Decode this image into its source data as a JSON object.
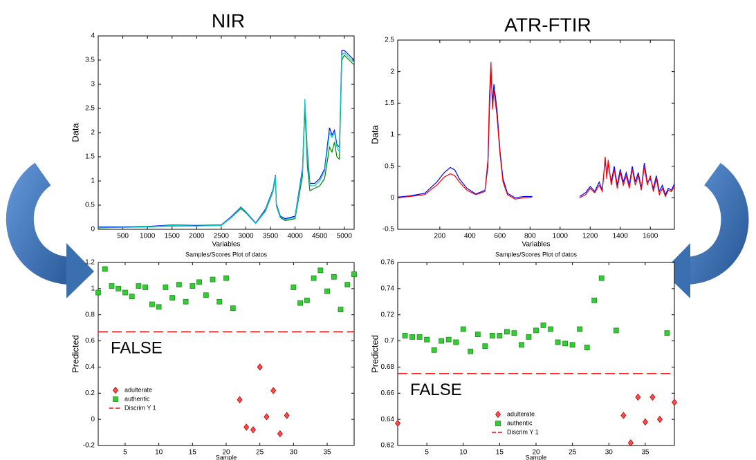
{
  "chart_data": [
    {
      "type": "line",
      "title": "NIR",
      "xlabel": "Variables",
      "ylabel": "Data",
      "x": [
        0,
        500,
        1000,
        1500,
        2000,
        2500,
        2700,
        2900,
        3000,
        3200,
        3400,
        3550,
        3600,
        3620,
        3700,
        3800,
        4000,
        4150,
        4200,
        4250,
        4300,
        4400,
        4500,
        4600,
        4700,
        4750,
        4800,
        4850,
        4900,
        4950,
        5000,
        5100,
        5200
      ],
      "series": [
        {
          "color": "#0000ff",
          "values": [
            0.05,
            0.05,
            0.06,
            0.09,
            0.08,
            0.09,
            0.26,
            0.46,
            0.36,
            0.13,
            0.42,
            0.82,
            1.12,
            0.52,
            0.27,
            0.22,
            0.27,
            1.25,
            2.6,
            1.6,
            0.95,
            0.95,
            1.05,
            1.25,
            2.1,
            1.95,
            2.05,
            1.75,
            1.7,
            3.7,
            3.7,
            3.6,
            3.5
          ]
        },
        {
          "color": "#008000",
          "values": [
            0.03,
            0.04,
            0.05,
            0.07,
            0.07,
            0.08,
            0.24,
            0.43,
            0.34,
            0.12,
            0.38,
            0.78,
            1.05,
            0.48,
            0.24,
            0.18,
            0.22,
            1.1,
            2.5,
            1.3,
            0.8,
            0.85,
            0.9,
            1.05,
            1.7,
            1.6,
            1.8,
            1.5,
            1.45,
            3.5,
            3.6,
            3.5,
            3.4
          ]
        },
        {
          "color": "#00cccc",
          "values": [
            0.04,
            0.04,
            0.05,
            0.08,
            0.07,
            0.08,
            0.25,
            0.45,
            0.35,
            0.12,
            0.4,
            0.8,
            1.1,
            0.5,
            0.25,
            0.2,
            0.25,
            1.2,
            2.7,
            1.5,
            0.9,
            0.9,
            1,
            1.2,
            2,
            1.9,
            2,
            1.7,
            1.6,
            3.6,
            3.65,
            3.55,
            3.45
          ]
        }
      ],
      "xlim": [
        0,
        5200
      ],
      "xticks": [
        500,
        1000,
        1500,
        2000,
        2500,
        3000,
        3500,
        4000,
        4500,
        5000
      ],
      "ylim": [
        0,
        4
      ],
      "yticks": [
        0,
        0.5,
        1,
        1.5,
        2,
        2.5,
        3,
        3.5,
        4
      ]
    },
    {
      "type": "line",
      "title": "ATR-FTIR",
      "xlabel": "Variables",
      "ylabel": "Data",
      "x": [
        -80,
        0,
        100,
        180,
        230,
        270,
        300,
        330,
        380,
        440,
        500,
        520,
        530,
        540,
        550,
        560,
        580,
        600,
        620,
        650,
        700,
        760,
        815,
        1000,
        1130,
        1170,
        1200,
        1230,
        1260,
        1280,
        1300,
        1310,
        1320,
        1340,
        1360,
        1380,
        1400,
        1420,
        1440,
        1460,
        1480,
        1500,
        1520,
        1540,
        1560,
        1580,
        1600,
        1620,
        1640,
        1660,
        1680,
        1700,
        1720,
        1740,
        1760
      ],
      "series": [
        {
          "color": "#0000ff",
          "values": [
            0.01,
            0.03,
            0.07,
            0.25,
            0.4,
            0.48,
            0.44,
            0.3,
            0.15,
            0.06,
            0.12,
            0.5,
            1.4,
            2.0,
            1.5,
            1.8,
            1.4,
            0.75,
            0.3,
            0.07,
            0,
            0.02,
            0.02,
            null,
            0.02,
            0.08,
            0.18,
            0.1,
            0.25,
            0.12,
            0.6,
            0.35,
            0.55,
            0.25,
            0.5,
            0.2,
            0.45,
            0.25,
            0.4,
            0.2,
            0.5,
            0.25,
            0.4,
            0.15,
            0.55,
            0.25,
            0.3,
            0.15,
            0.35,
            0.1,
            0.2,
            0.05,
            0.15,
            0.12,
            0.22
          ]
        },
        {
          "color": "#ff0000",
          "values": [
            0,
            0.02,
            0.05,
            0.2,
            0.33,
            0.38,
            0.35,
            0.25,
            0.12,
            0.05,
            0.1,
            0.6,
            1.6,
            2.15,
            1.4,
            1.7,
            1.3,
            0.7,
            0.25,
            0.05,
            -0.02,
            0,
            0.01,
            null,
            0,
            0.05,
            0.15,
            0.08,
            0.2,
            0.1,
            0.65,
            0.3,
            0.6,
            0.2,
            0.45,
            0.15,
            0.4,
            0.2,
            0.35,
            0.15,
            0.45,
            0.2,
            0.35,
            0.12,
            0.5,
            0.2,
            0.35,
            0.1,
            0.3,
            0.05,
            0.15,
            0.02,
            0.12,
            0.1,
            0.18
          ]
        }
      ],
      "xlim": [
        -80,
        1760
      ],
      "xticks": [
        200,
        400,
        600,
        800,
        1000,
        1200,
        1400,
        1600
      ],
      "ylim": [
        -0.5,
        2.5
      ],
      "yticks": [
        -0.5,
        0,
        0.5,
        1,
        1.5,
        2,
        2.5
      ]
    },
    {
      "type": "scatter",
      "title": "Samples/Scores Plot of datos",
      "xlabel": "Sample",
      "ylabel": "Predicted",
      "annotation": "FALSE",
      "legend": "lower left",
      "series": [
        {
          "name": "adulterate",
          "color": "#ff4d4d",
          "marker": "diamond",
          "x": [
            22,
            23,
            24,
            25,
            26,
            27,
            28,
            29
          ],
          "values": [
            0.15,
            -0.06,
            -0.08,
            0.4,
            0.02,
            0.22,
            -0.11,
            0.03
          ]
        },
        {
          "name": "authentic",
          "color": "#33cc33",
          "marker": "square",
          "x": [
            1,
            2,
            3,
            4,
            5,
            6,
            7,
            8,
            9,
            10,
            11,
            12,
            13,
            14,
            15,
            16,
            17,
            18,
            19,
            20,
            21,
            30,
            31,
            32,
            33,
            34,
            35,
            36,
            37,
            38,
            39
          ],
          "values": [
            0.97,
            1.15,
            1.02,
            1.0,
            0.97,
            0.94,
            1.02,
            1.01,
            0.88,
            0.86,
            1.01,
            0.93,
            1.03,
            0.9,
            1.02,
            1.05,
            0.95,
            1.07,
            0.9,
            1.08,
            0.85,
            1.01,
            0.89,
            0.91,
            1.08,
            1.14,
            0.98,
            1.09,
            0.84,
            1.03,
            1.11
          ]
        }
      ],
      "threshold": {
        "name": "Discrim Y 1",
        "color": "#ff0000",
        "value": 0.67
      },
      "xlim": [
        1,
        39
      ],
      "xticks": [
        5,
        10,
        15,
        20,
        25,
        30,
        35
      ],
      "ylim": [
        -0.2,
        1.2
      ],
      "yticks": [
        -0.2,
        0,
        0.2,
        0.4,
        0.6,
        0.8,
        1,
        1.2
      ]
    },
    {
      "type": "scatter",
      "title": "Samples/Scores Plot of datos",
      "xlabel": "Sample",
      "ylabel": "Predicted",
      "annotation": "FALSE",
      "legend": "lower center",
      "series": [
        {
          "name": "adulterate",
          "color": "#ff4d4d",
          "marker": "diamond",
          "x": [
            1,
            32,
            33,
            34,
            35,
            36,
            37,
            39
          ],
          "values": [
            0.637,
            0.643,
            0.622,
            0.657,
            0.638,
            0.657,
            0.64,
            0.653
          ]
        },
        {
          "name": "authentic",
          "color": "#33cc33",
          "marker": "square",
          "x": [
            2,
            3,
            4,
            5,
            6,
            7,
            8,
            9,
            10,
            11,
            12,
            13,
            14,
            15,
            16,
            17,
            18,
            19,
            20,
            21,
            22,
            23,
            24,
            25,
            26,
            27,
            28,
            29,
            31,
            38
          ],
          "values": [
            0.704,
            0.703,
            0.703,
            0.701,
            0.693,
            0.7,
            0.701,
            0.699,
            0.709,
            0.692,
            0.705,
            0.696,
            0.704,
            0.704,
            0.707,
            0.706,
            0.697,
            0.703,
            0.708,
            0.712,
            0.709,
            0.699,
            0.698,
            0.697,
            0.709,
            0.695,
            0.731,
            0.748,
            0.708,
            0.706
          ]
        }
      ],
      "threshold": {
        "name": "Discrim Y 1",
        "color": "#ff0000",
        "value": 0.675
      },
      "xlim": [
        1,
        39
      ],
      "xticks": [
        5,
        10,
        15,
        20,
        25,
        30,
        35
      ],
      "ylim": [
        0.62,
        0.76
      ],
      "yticks": [
        0.62,
        0.64,
        0.66,
        0.68,
        0.7,
        0.72,
        0.74,
        0.76
      ]
    }
  ]
}
